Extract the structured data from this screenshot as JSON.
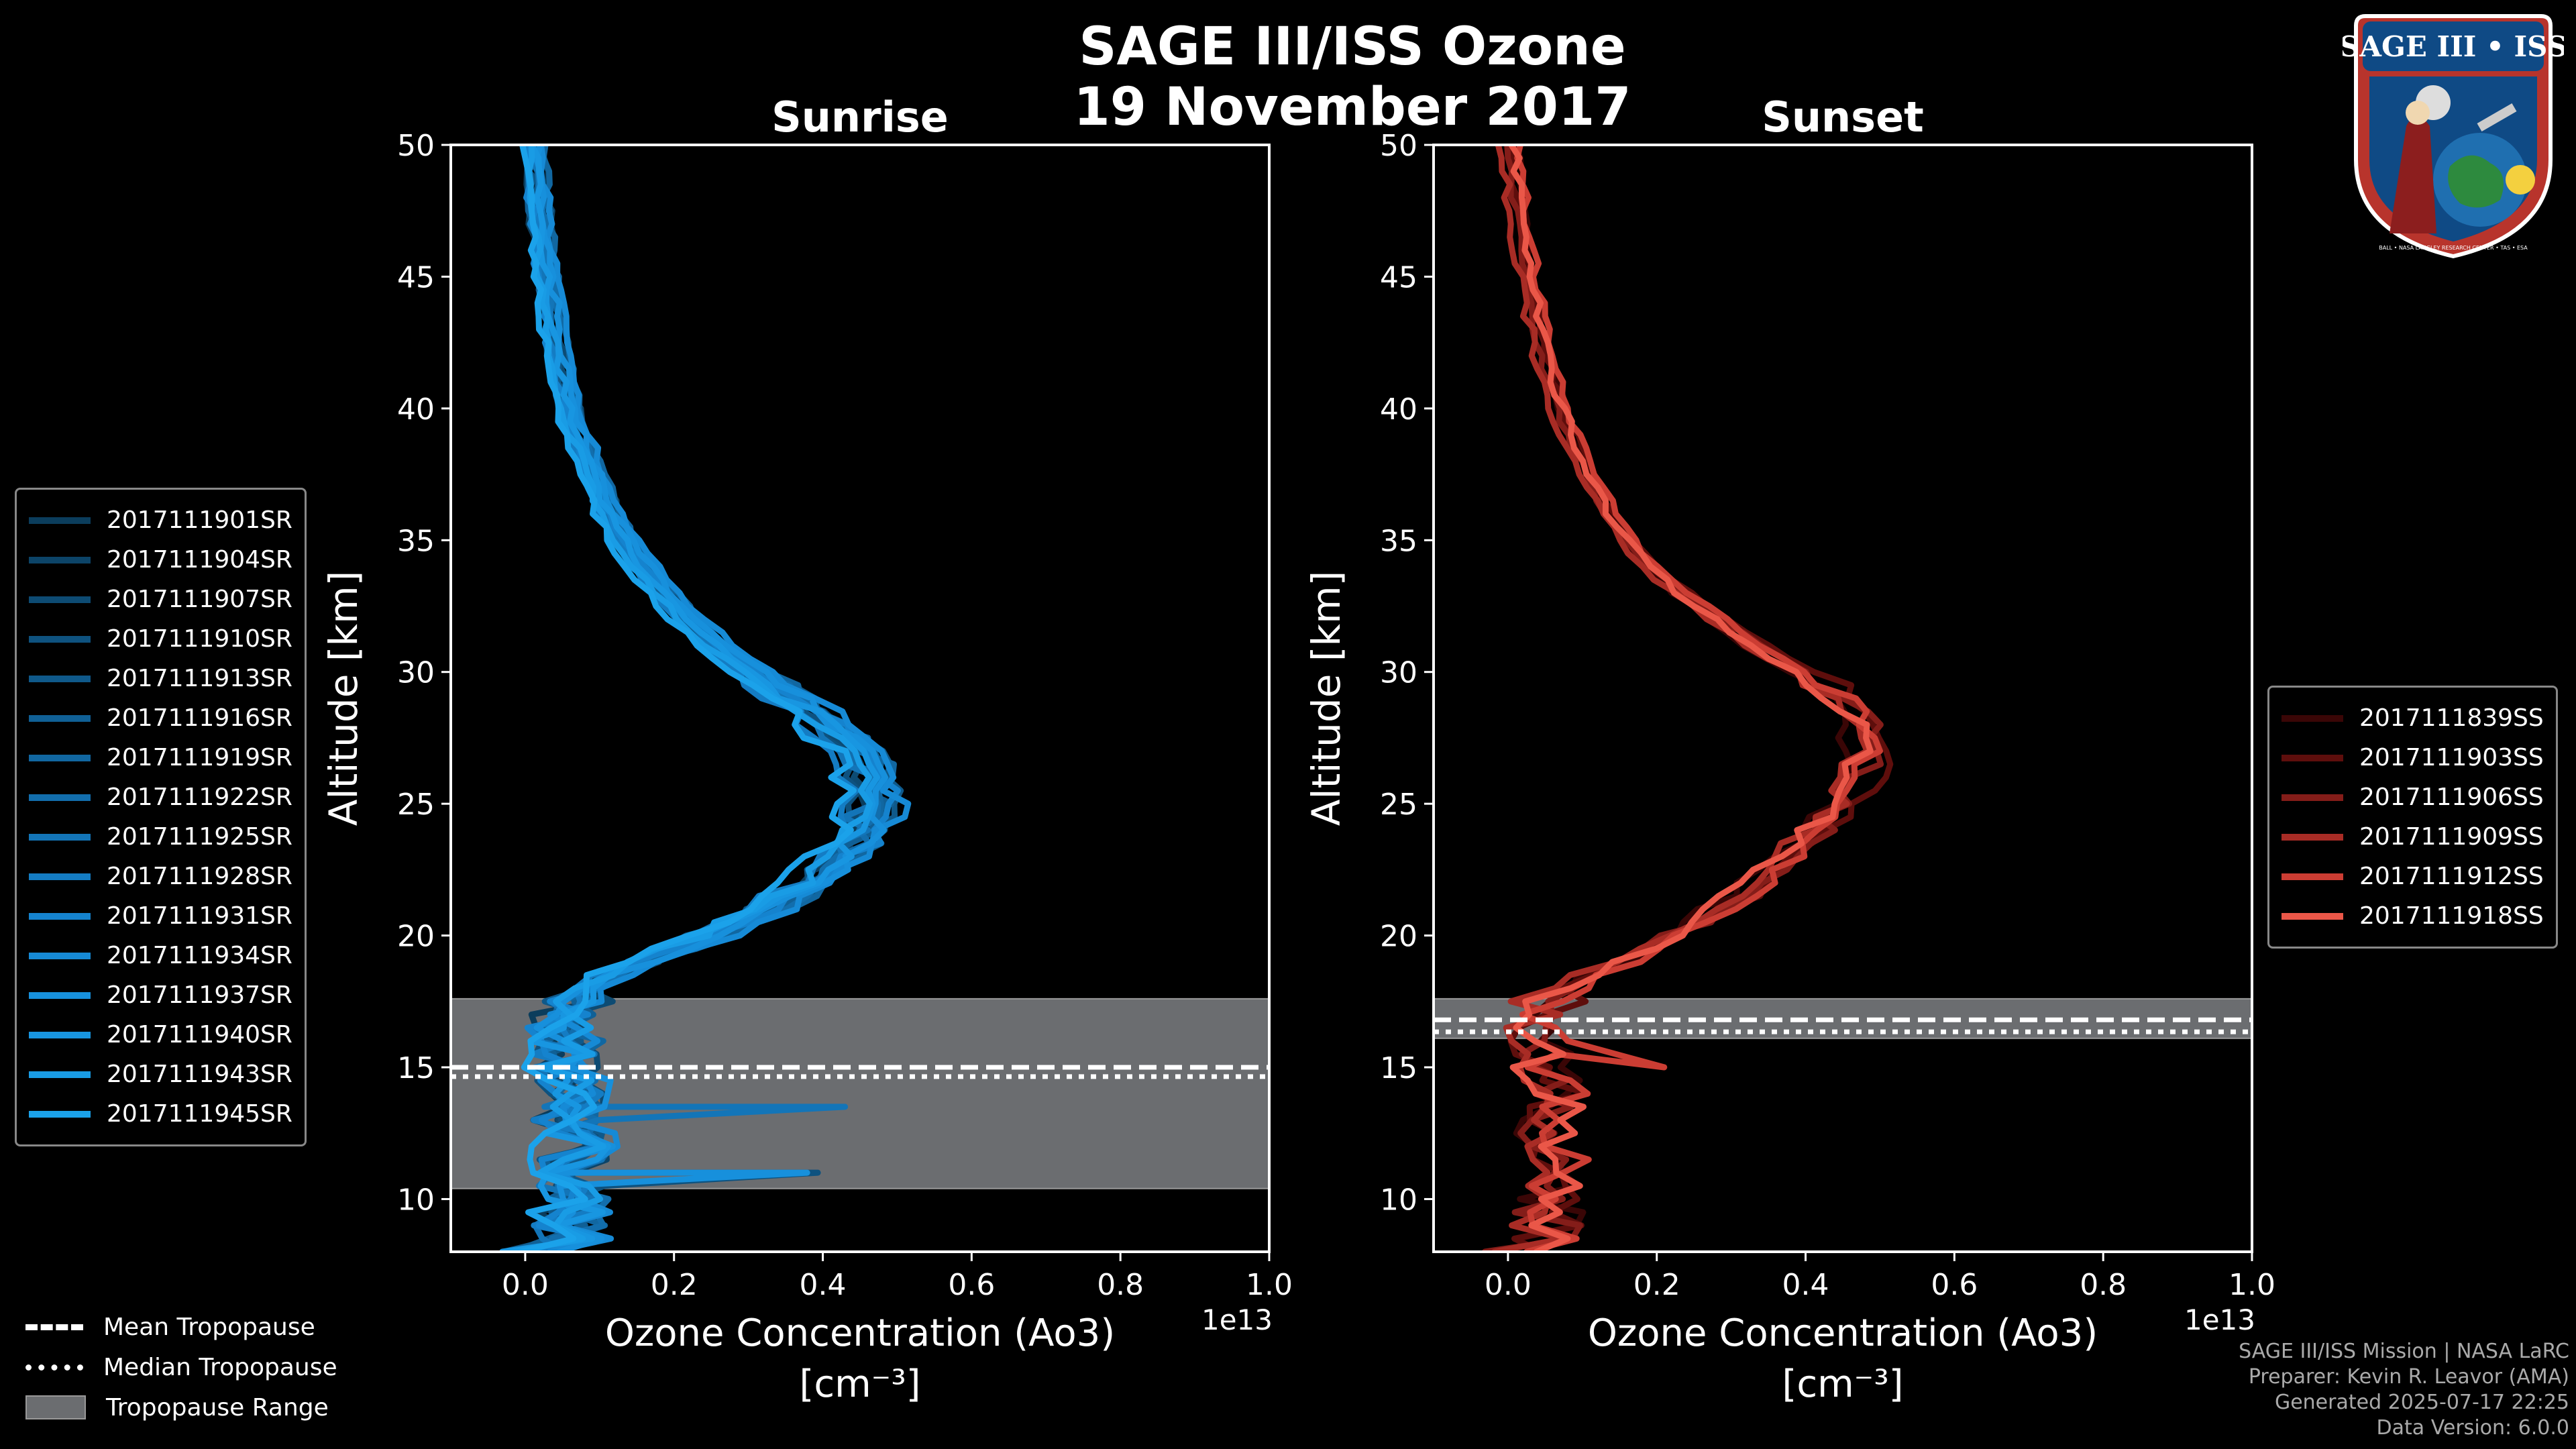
{
  "title_line1": "SAGE III/ISS Ozone",
  "title_line2": "19 November 2017",
  "badge": {
    "text": "SAGE III • ISS",
    "ring_text": "BALL • NASA LANGLEY RESEARCH CENTER • TAS • ESA"
  },
  "footer": {
    "line1": "SAGE III/ISS Mission | NASA LaRC",
    "line2": "Preparer: Kevin R. Leavor (AMA)",
    "line3": "Generated 2025-07-17 22:25",
    "line4": "Data Version: 6.0.0"
  },
  "tropopause_legend": {
    "mean": "Mean Tropopause",
    "median": "Median Tropopause",
    "range": "Tropopause Range"
  },
  "chart_data": [
    {
      "type": "line",
      "title": "Sunrise",
      "xlabel_line1": "Ozone Concentration (Ao3)",
      "xlabel_line2": "[cm⁻³]",
      "x_offset_text": "1e13",
      "ylabel": "Altitude [km]",
      "xlim": [
        -0.1,
        1.0
      ],
      "ylim": [
        8,
        50
      ],
      "xticks": [
        0.0,
        0.2,
        0.4,
        0.6,
        0.8,
        1.0
      ],
      "xtick_labels": [
        "0.0",
        "0.2",
        "0.4",
        "0.6",
        "0.8",
        "1.0"
      ],
      "yticks": [
        10,
        15,
        20,
        25,
        30,
        35,
        40,
        45,
        50
      ],
      "ytick_labels": [
        "10",
        "15",
        "20",
        "25",
        "30",
        "35",
        "40",
        "45",
        "50"
      ],
      "tropopause": {
        "mean": 15.0,
        "median": 14.9,
        "range": [
          10.4,
          17.6
        ]
      },
      "base_profile": {
        "altitude": [
          8.5,
          9,
          10,
          11,
          12,
          13,
          14,
          15,
          16,
          17,
          17.5,
          18,
          18.5,
          19,
          19.5,
          20,
          21,
          22,
          23,
          24,
          25,
          26,
          27,
          28,
          29,
          30,
          31,
          32,
          33,
          34,
          35,
          36,
          38,
          40,
          42,
          44,
          46,
          48,
          50
        ],
        "ozone": [
          0.07,
          0.06,
          0.07,
          0.06,
          0.07,
          0.06,
          0.07,
          0.06,
          0.05,
          0.06,
          0.07,
          0.09,
          0.12,
          0.16,
          0.2,
          0.25,
          0.33,
          0.39,
          0.43,
          0.46,
          0.47,
          0.47,
          0.45,
          0.41,
          0.36,
          0.31,
          0.26,
          0.22,
          0.19,
          0.16,
          0.135,
          0.115,
          0.085,
          0.06,
          0.045,
          0.035,
          0.025,
          0.018,
          0.012
        ]
      },
      "series": [
        {
          "name": "2017111901SR",
          "color": "#0b3d5c"
        },
        {
          "name": "2017111904SR",
          "color": "#0c4468"
        },
        {
          "name": "2017111907SR",
          "color": "#0d4b73"
        },
        {
          "name": "2017111910SR",
          "color": "#0e527f"
        },
        {
          "name": "2017111913SR",
          "color": "#0f598a"
        },
        {
          "name": "2017111916SR",
          "color": "#106096"
        },
        {
          "name": "2017111919SR",
          "color": "#1167a1"
        },
        {
          "name": "2017111922SR",
          "color": "#126ead"
        },
        {
          "name": "2017111925SR",
          "color": "#1375b8"
        },
        {
          "name": "2017111928SR",
          "color": "#147cc3"
        },
        {
          "name": "2017111931SR",
          "color": "#1583ce"
        },
        {
          "name": "2017111934SR",
          "color": "#168ad6"
        },
        {
          "name": "2017111937SR",
          "color": "#1790dc"
        },
        {
          "name": "2017111940SR",
          "color": "#1896e1"
        },
        {
          "name": "2017111943SR",
          "color": "#199ce5"
        },
        {
          "name": "2017111945SR",
          "color": "#1ba2ea"
        }
      ]
    },
    {
      "type": "line",
      "title": "Sunset",
      "xlabel_line1": "Ozone Concentration (Ao3)",
      "xlabel_line2": "[cm⁻³]",
      "x_offset_text": "1e13",
      "ylabel": "Altitude [km]",
      "xlim": [
        -0.1,
        1.0
      ],
      "ylim": [
        8,
        50
      ],
      "xticks": [
        0.0,
        0.2,
        0.4,
        0.6,
        0.8,
        1.0
      ],
      "xtick_labels": [
        "0.0",
        "0.2",
        "0.4",
        "0.6",
        "0.8",
        "1.0"
      ],
      "yticks": [
        10,
        15,
        20,
        25,
        30,
        35,
        40,
        45,
        50
      ],
      "ytick_labels": [
        "10",
        "15",
        "20",
        "25",
        "30",
        "35",
        "40",
        "45",
        "50"
      ],
      "tropopause": {
        "mean": 16.8,
        "median": 16.6,
        "range": [
          16.1,
          17.6
        ]
      },
      "base_profile": {
        "altitude": [
          8.5,
          9,
          10,
          11,
          12,
          13,
          14,
          15,
          15.5,
          16,
          16.5,
          17,
          17.5,
          18,
          18.5,
          19,
          19.5,
          20,
          21,
          22,
          23,
          24,
          25,
          26,
          27,
          28,
          29,
          30,
          31,
          32,
          33,
          34,
          35,
          36,
          38,
          40,
          42,
          44,
          46,
          48,
          50
        ],
        "ozone": [
          0.05,
          0.06,
          0.05,
          0.06,
          0.05,
          0.05,
          0.06,
          0.04,
          0.04,
          0.03,
          0.04,
          0.05,
          0.06,
          0.08,
          0.11,
          0.15,
          0.19,
          0.22,
          0.28,
          0.33,
          0.37,
          0.41,
          0.44,
          0.46,
          0.48,
          0.47,
          0.44,
          0.39,
          0.33,
          0.28,
          0.23,
          0.19,
          0.16,
          0.135,
          0.1,
          0.07,
          0.05,
          0.035,
          0.022,
          0.012,
          0.005
        ]
      },
      "series": [
        {
          "name": "2017111839SS",
          "color": "#3a0606"
        },
        {
          "name": "2017111903SS",
          "color": "#5e0e0c"
        },
        {
          "name": "2017111906SS",
          "color": "#841d19"
        },
        {
          "name": "2017111909SS",
          "color": "#a82c25"
        },
        {
          "name": "2017111912SS",
          "color": "#cb3d33"
        },
        {
          "name": "2017111918SS",
          "color": "#ea5748"
        }
      ]
    }
  ]
}
